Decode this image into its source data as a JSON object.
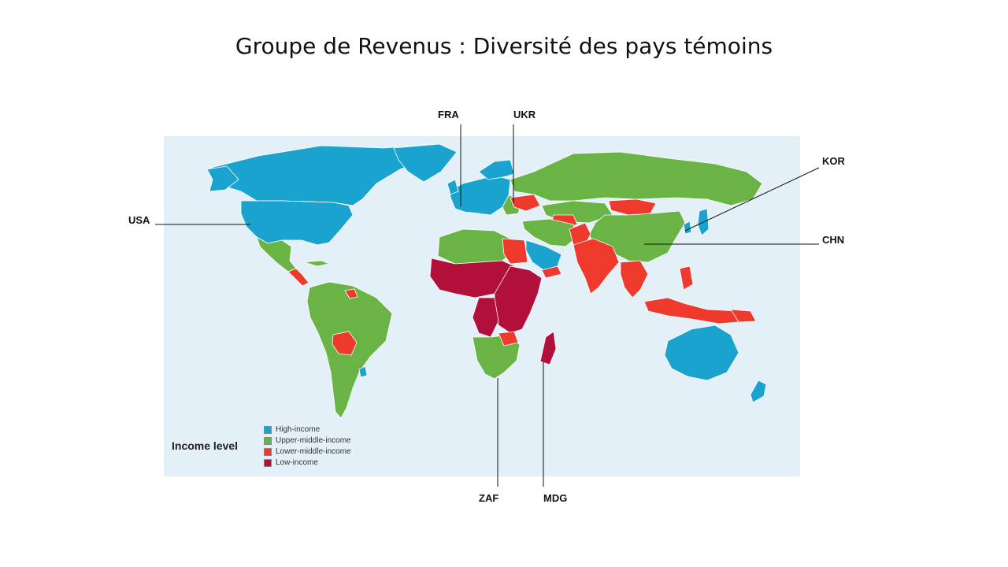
{
  "slide": {
    "title": "Groupe de Revenus :  Diversité des pays témoins"
  },
  "colors": {
    "ocean": "#e3f0f7",
    "high_income": "#1aa3cf",
    "upper_middle_income": "#6ab446",
    "lower_middle_income": "#ee3a2c",
    "low_income": "#b0103a",
    "border": "#ffffff"
  },
  "legend": {
    "title": "Income level",
    "items": [
      {
        "label": "High-income",
        "color": "#1aa3cf"
      },
      {
        "label": "Upper-middle-income",
        "color": "#6ab446"
      },
      {
        "label": "Lower-middle-income",
        "color": "#ee3a2c"
      },
      {
        "label": "Low-income",
        "color": "#b0103a"
      }
    ]
  },
  "labels": {
    "fra": "FRA",
    "ukr": "UKR",
    "kor": "KOR",
    "usa": "USA",
    "chn": "CHN",
    "zaf": "ZAF",
    "mdg": "MDG"
  }
}
